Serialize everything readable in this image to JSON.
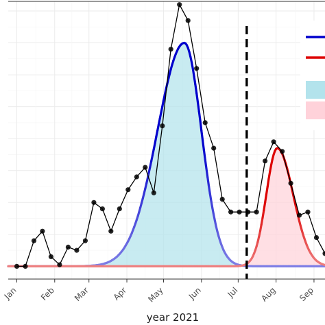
{
  "chart_data": {
    "type": "line",
    "title": "",
    "xlabel": "year 2021",
    "ylabel": "",
    "x_tick_labels": [
      "Jan",
      "Feb",
      "Mar",
      "Apr",
      "May",
      "Jun",
      "Jul",
      "Aug",
      "Sep"
    ],
    "x_tick_day_of_year": [
      1,
      32,
      60,
      91,
      121,
      152,
      182,
      213,
      244
    ],
    "xlim_day_of_year": [
      -6,
      253
    ],
    "ylim": [
      -0.4,
      8.3
    ],
    "grid": true,
    "legend_placement": "top-right",
    "vertical_marker": {
      "day_of_year": 189,
      "style": "dashed",
      "color": "#000000"
    },
    "observed": {
      "color": "#000000",
      "points": [
        {
          "day": 1,
          "value": 0.0
        },
        {
          "day": 8,
          "value": 0.0
        },
        {
          "day": 15,
          "value": 0.8
        },
        {
          "day": 22,
          "value": 1.1
        },
        {
          "day": 29,
          "value": 0.3
        },
        {
          "day": 36,
          "value": 0.05
        },
        {
          "day": 43,
          "value": 0.6
        },
        {
          "day": 50,
          "value": 0.5
        },
        {
          "day": 57,
          "value": 0.8
        },
        {
          "day": 64,
          "value": 2.0
        },
        {
          "day": 71,
          "value": 1.8
        },
        {
          "day": 78,
          "value": 1.1
        },
        {
          "day": 85,
          "value": 1.8
        },
        {
          "day": 92,
          "value": 2.4
        },
        {
          "day": 99,
          "value": 2.8
        },
        {
          "day": 106,
          "value": 3.1
        },
        {
          "day": 113,
          "value": 2.3
        },
        {
          "day": 120,
          "value": 4.4
        },
        {
          "day": 127,
          "value": 6.8
        },
        {
          "day": 134,
          "value": 8.2
        },
        {
          "day": 141,
          "value": 7.7
        },
        {
          "day": 148,
          "value": 6.2
        },
        {
          "day": 155,
          "value": 4.5
        },
        {
          "day": 162,
          "value": 3.7
        },
        {
          "day": 169,
          "value": 2.1
        },
        {
          "day": 176,
          "value": 1.7
        },
        {
          "day": 183,
          "value": 1.7
        },
        {
          "day": 190,
          "value": 1.7
        },
        {
          "day": 197,
          "value": 1.7
        },
        {
          "day": 204,
          "value": 3.3
        },
        {
          "day": 211,
          "value": 3.9
        },
        {
          "day": 218,
          "value": 3.6
        },
        {
          "day": 225,
          "value": 2.6
        },
        {
          "day": 232,
          "value": 1.6
        },
        {
          "day": 239,
          "value": 1.7
        },
        {
          "day": 246,
          "value": 0.9
        },
        {
          "day": 253,
          "value": 0.4
        }
      ]
    },
    "series": [
      {
        "name": "",
        "kind": "fitted-curve",
        "color": "#0000cc",
        "fill_color": "#b3e3ec",
        "peak_day": 138,
        "peak_value": 7.0,
        "left_width_days": 22,
        "right_width_days": 14
      },
      {
        "name": "",
        "kind": "fitted-curve",
        "color": "#dd0000",
        "fill_color": "#ffd2da",
        "peak_day": 214,
        "peak_value": 3.7,
        "left_width_days": 9,
        "right_width_days": 13
      }
    ]
  }
}
